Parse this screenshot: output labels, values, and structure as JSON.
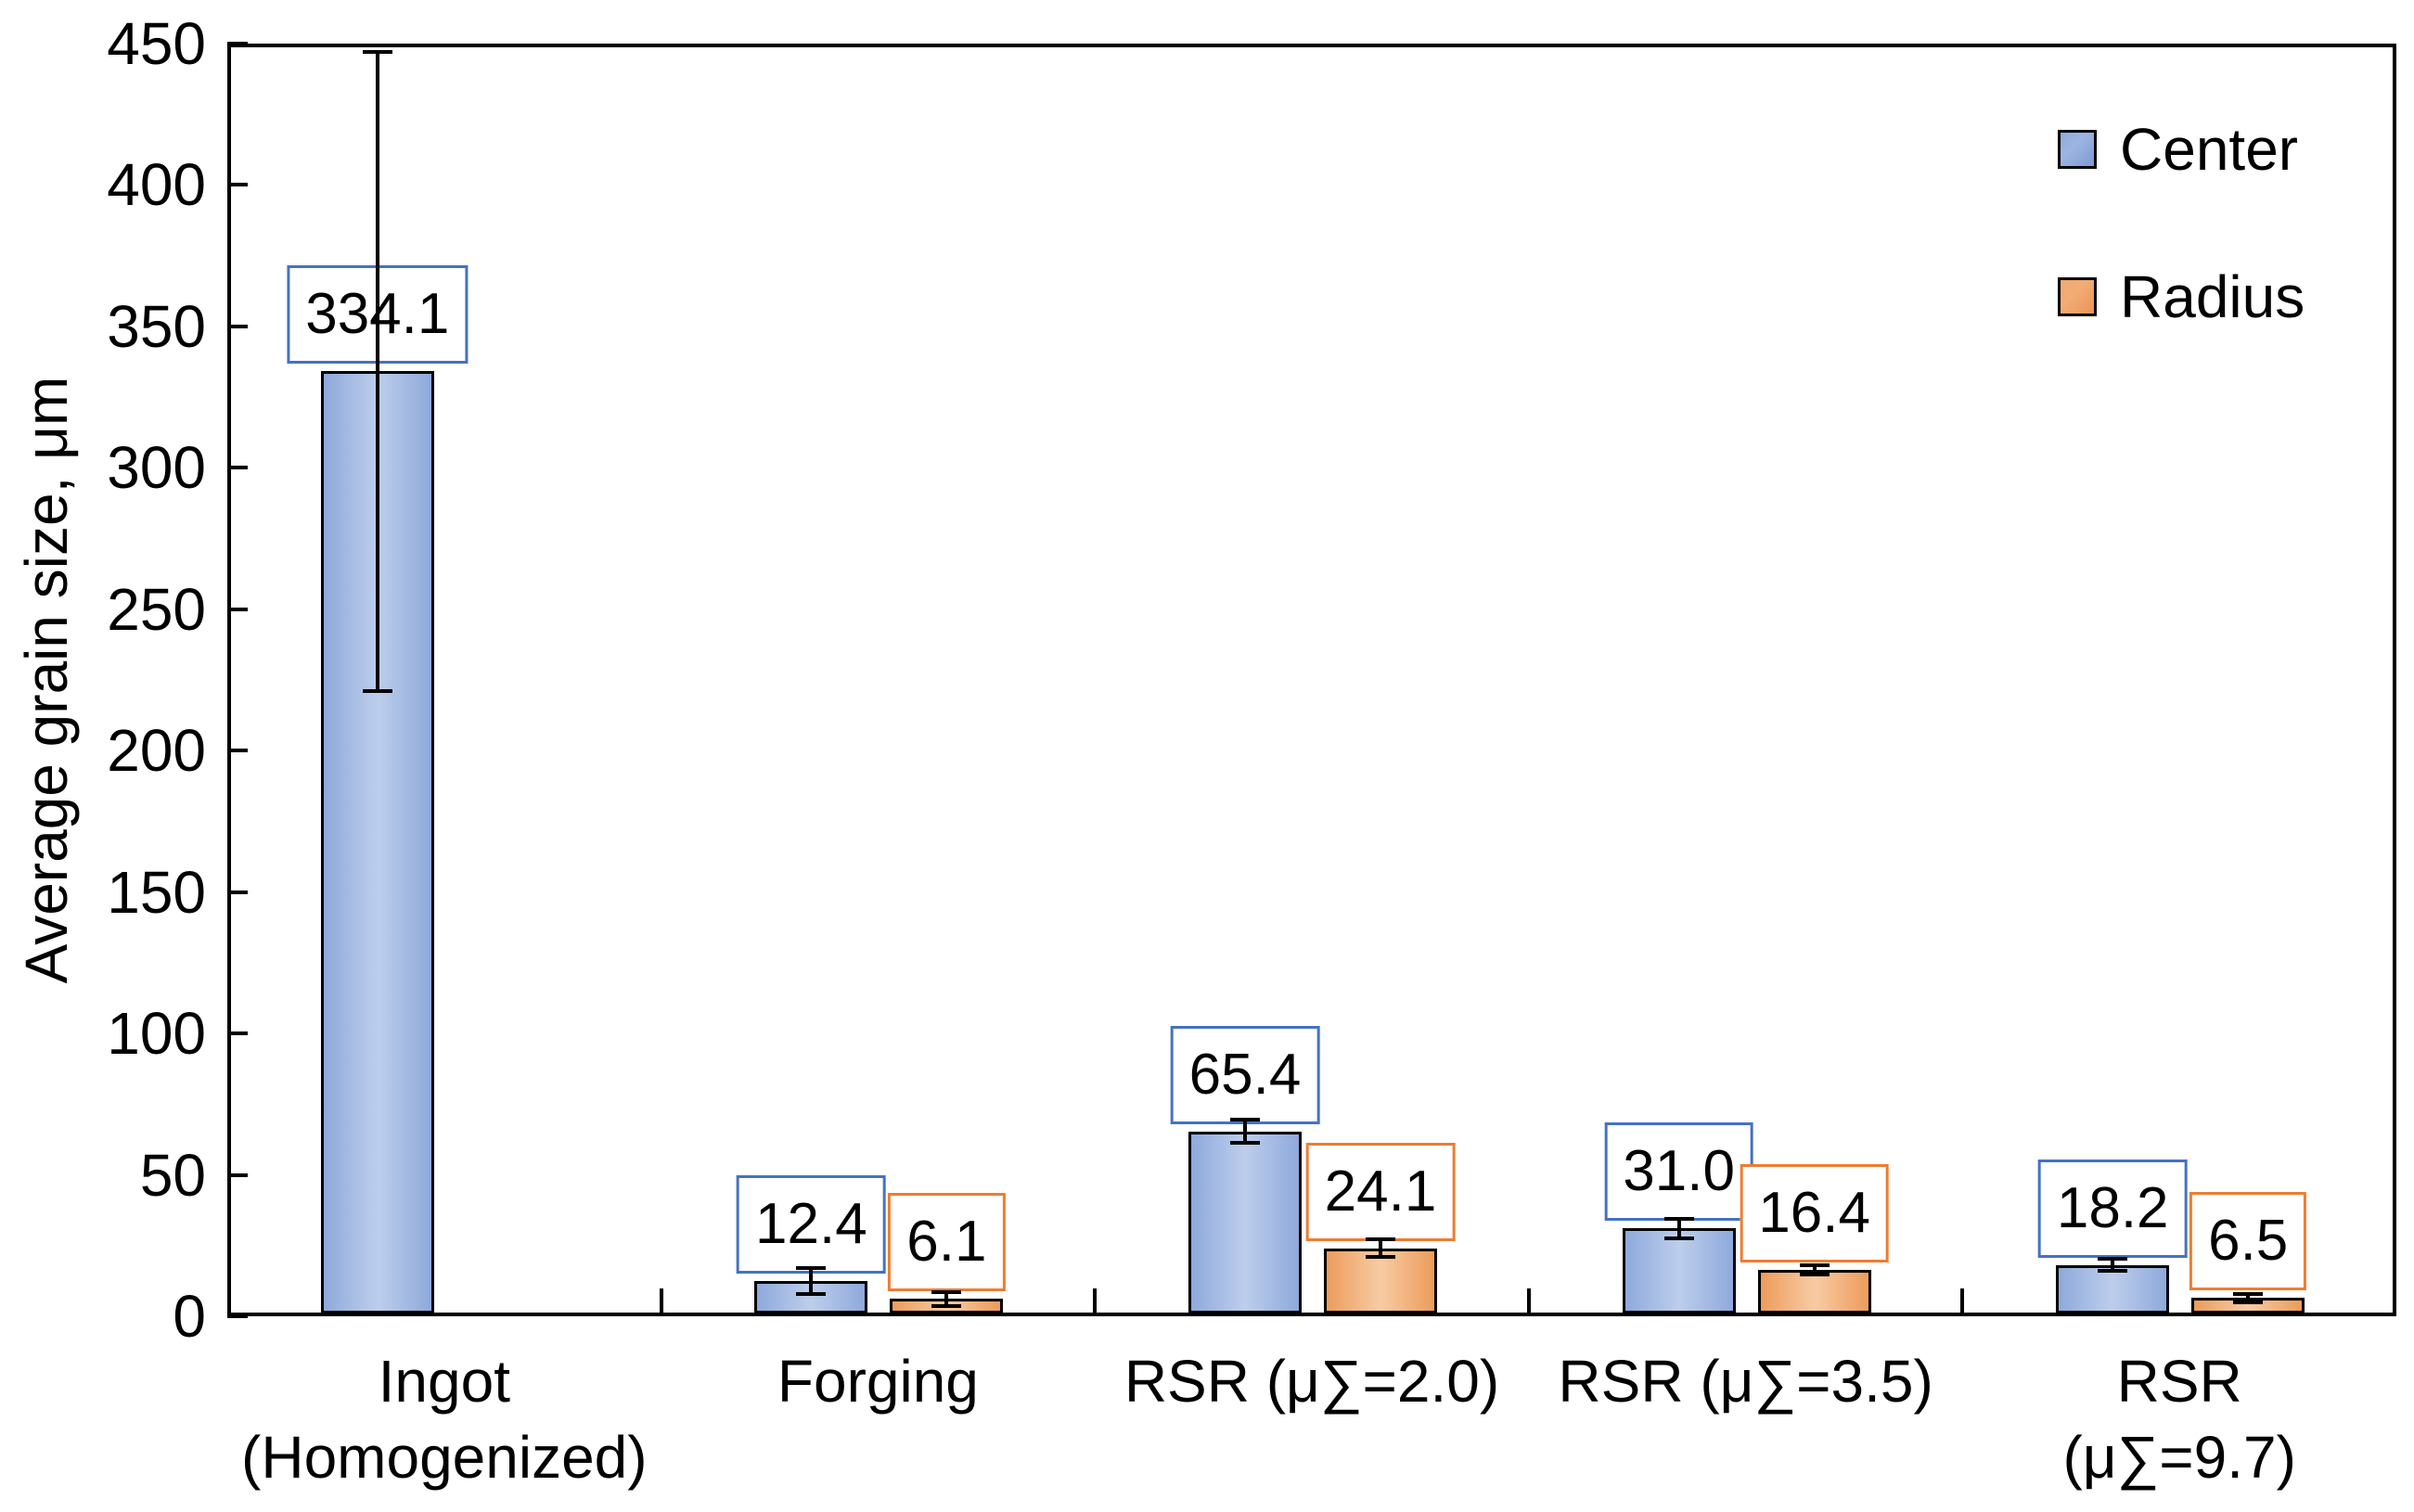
{
  "chart_data": {
    "type": "bar",
    "title": "",
    "ylabel": "Average grain size, μm",
    "xlabel": "",
    "ylim": [
      0,
      450
    ],
    "yticks": [
      0,
      50,
      100,
      150,
      200,
      250,
      300,
      350,
      400,
      450
    ],
    "grid": false,
    "legend_position": "top-right-inside",
    "categories": [
      "Ingot\n(Homogenized)",
      "Forging",
      "RSR (μ∑=2.0)",
      "RSR (μ∑=3.5)",
      "RSR (μ∑=9.7)"
    ],
    "series": [
      {
        "name": "Center",
        "fill_edge": "#8EA9DB",
        "fill_center": "#BDCEEC",
        "label_box_border": "#4472C4",
        "values": [
          334.1,
          12.4,
          65.4,
          31.0,
          18.2
        ],
        "labels": [
          "334.1",
          "12.4",
          "65.4",
          "31.0",
          "18.2"
        ],
        "errors": [
          113,
          4.5,
          4,
          3.5,
          2
        ]
      },
      {
        "name": "Radius",
        "fill_edge": "#EC9C5B",
        "fill_center": "#F8CBA4",
        "label_box_border": "#ED7D31",
        "values": [
          null,
          6.1,
          24.1,
          16.4,
          6.5
        ],
        "labels": [
          null,
          "6.1",
          "24.1",
          "16.4",
          "6.5"
        ],
        "errors": [
          null,
          2.5,
          3,
          1.5,
          1.5
        ]
      }
    ],
    "axis_color": "#000000",
    "bar_outline_color": "#000000",
    "error_bar_color": "#000000",
    "value_label_text_color": "#000000"
  }
}
